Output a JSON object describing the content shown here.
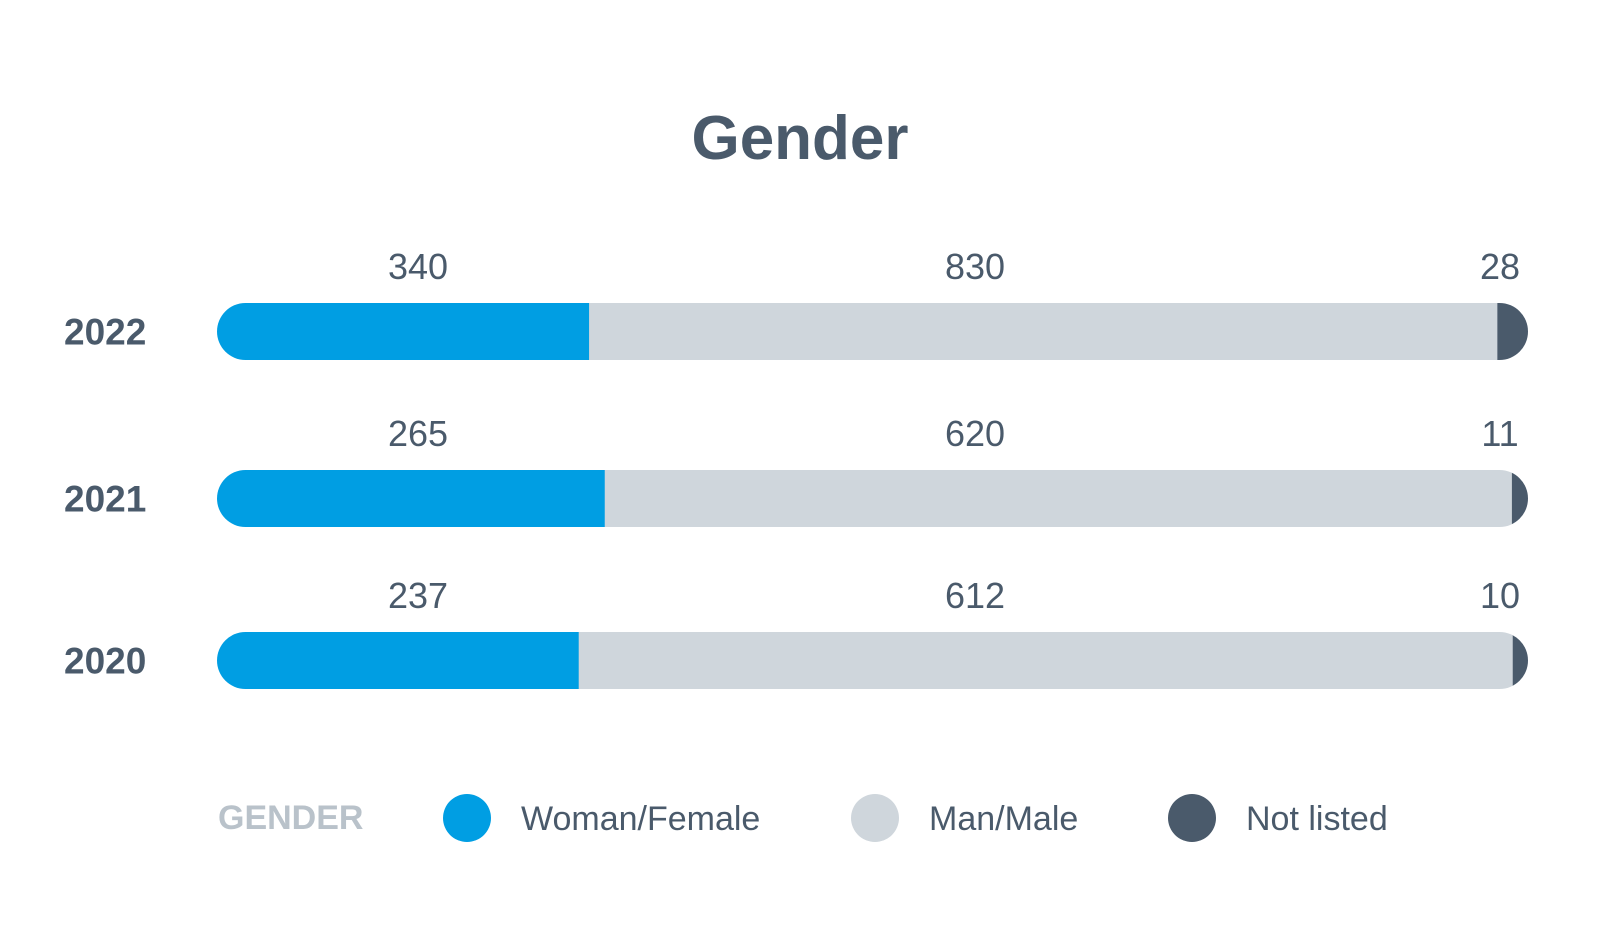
{
  "chart_data": {
    "type": "bar",
    "orientation": "horizontal",
    "stacked": true,
    "normalized": true,
    "title": "Gender",
    "categories": [
      "2022",
      "2021",
      "2020"
    ],
    "series": [
      {
        "name": "Woman/Female",
        "color": "#009ee3",
        "values": [
          340,
          265,
          237
        ]
      },
      {
        "name": "Man/Male",
        "color": "#cfd6dc",
        "values": [
          830,
          620,
          612
        ]
      },
      {
        "name": "Not listed",
        "color": "#4a5a6b",
        "values": [
          28,
          11,
          10
        ]
      }
    ],
    "xlabel": "",
    "ylabel": "",
    "grid": false,
    "legend": {
      "title": "GENDER",
      "placement": "bottom"
    }
  }
}
